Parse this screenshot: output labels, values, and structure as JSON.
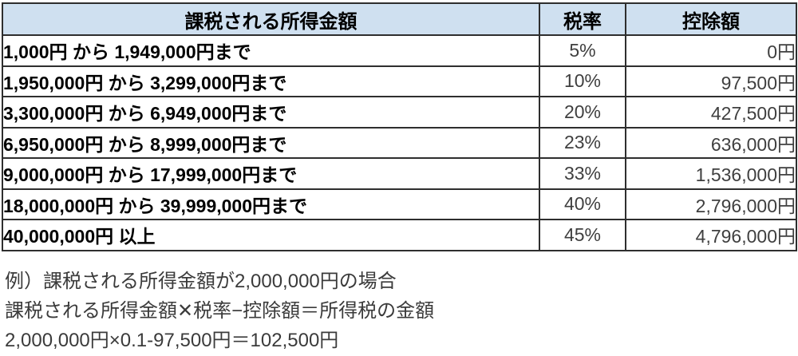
{
  "table": {
    "headers": {
      "income": "課税される所得金額",
      "rate": "税率",
      "deduction": "控除額"
    },
    "rows": [
      {
        "income": "1,000円 から 1,949,000円まで",
        "rate": "5%",
        "deduction": "0円"
      },
      {
        "income": "1,950,000円 から 3,299,000円まで",
        "rate": "10%",
        "deduction": "97,500円"
      },
      {
        "income": "3,300,000円 から 6,949,000円まで",
        "rate": "20%",
        "deduction": "427,500円"
      },
      {
        "income": "6,950,000円 から 8,999,000円まで",
        "rate": "23%",
        "deduction": "636,000円"
      },
      {
        "income": "9,000,000円 から 17,999,000円まで",
        "rate": "33%",
        "deduction": "1,536,000円"
      },
      {
        "income": "18,000,000円 から 39,999,000円まで",
        "rate": "40%",
        "deduction": "2,796,000円"
      },
      {
        "income": "40,000,000円 以上",
        "rate": "45%",
        "deduction": "4,796,000円"
      }
    ]
  },
  "notes": {
    "line1": "例）課税される所得金額が2,000,000円の場合",
    "line2": "課税される所得金額✕税率−控除額＝所得税の金額",
    "line3": "2,000,000円×0.1-97,500円＝102,500円"
  },
  "colors": {
    "header_background": "#cfe0f0",
    "border": "#2e2e2e",
    "income_text": "#000000",
    "value_text": "#3f3f3f",
    "note_text": "#3b3b3b"
  }
}
